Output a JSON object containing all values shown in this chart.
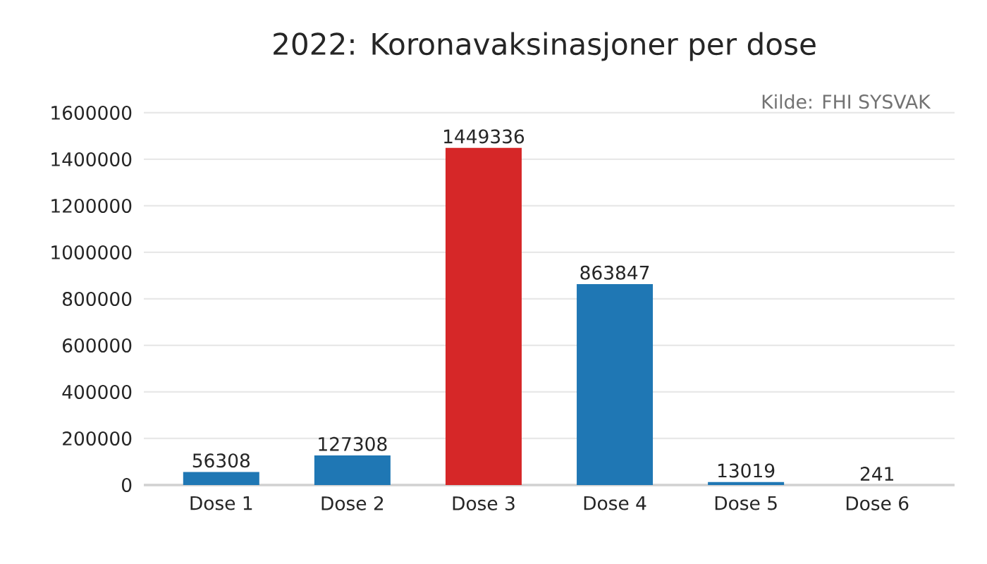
{
  "chart_data": {
    "type": "bar",
    "title": "2022: Koronavaksinasjoner per dose",
    "annotations": [
      "Kilde: FHI SYSVAK"
    ],
    "categories": [
      "Dose 1",
      "Dose 2",
      "Dose 3",
      "Dose 4",
      "Dose 5",
      "Dose 6"
    ],
    "values": [
      56308,
      127308,
      1449336,
      863847,
      13019,
      241
    ],
    "colors": [
      "#1f77b4",
      "#1f77b4",
      "#d62728",
      "#1f77b4",
      "#1f77b4",
      "#1f77b4"
    ],
    "ylim": [
      0,
      1600000
    ],
    "yticks": [
      0,
      200000,
      400000,
      600000,
      800000,
      1000000,
      1200000,
      1400000,
      1600000
    ],
    "grid": "y",
    "data_labels": true
  }
}
